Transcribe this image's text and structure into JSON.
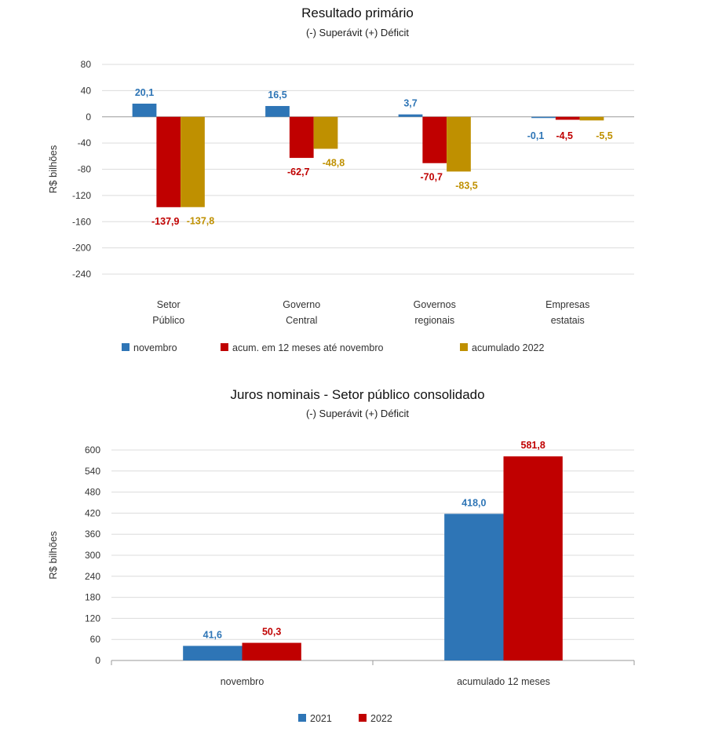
{
  "chart_data": [
    {
      "type": "bar",
      "title": "Resultado primário",
      "subtitle": "(-) Superávit  (+) Déficit",
      "ylabel": "R$ bilhões",
      "ylim": [
        -240,
        80
      ],
      "yticks": [
        80,
        40,
        0,
        -40,
        -80,
        -120,
        -160,
        -200,
        -240
      ],
      "categories": [
        [
          "Setor",
          "Público"
        ],
        [
          "Governo",
          "Central"
        ],
        [
          "Governos",
          "regionais"
        ],
        [
          "Empresas",
          "estatais"
        ]
      ],
      "series": [
        {
          "name": "novembro",
          "color": "#2E75B6",
          "values": [
            20.1,
            16.5,
            3.7,
            -0.1
          ],
          "labels": [
            "20,1",
            "16,5",
            "3,7",
            "-0,1"
          ]
        },
        {
          "name": "acum. em 12 meses até novembro",
          "color": "#C00000",
          "values": [
            -137.9,
            -62.7,
            -70.7,
            -4.5
          ],
          "labels": [
            "-137,9",
            "-62,7",
            "-70,7",
            "-4,5"
          ]
        },
        {
          "name": "acumulado 2022",
          "color": "#BF9000",
          "values": [
            -137.8,
            -48.8,
            -83.5,
            -5.5
          ],
          "labels": [
            "-137,8",
            "-48,8",
            "-83,5",
            "-5,5"
          ]
        }
      ],
      "legend_position": "bottom",
      "grid": true
    },
    {
      "type": "bar",
      "title": "Juros nominais - Setor público consolidado",
      "subtitle": "(-) Superávit  (+) Déficit",
      "ylabel": "R$ bilhões",
      "ylim": [
        0,
        600
      ],
      "yticks": [
        600,
        540,
        480,
        420,
        360,
        300,
        240,
        180,
        120,
        60,
        0
      ],
      "categories": [
        [
          "novembro"
        ],
        [
          "acumulado 12 meses"
        ]
      ],
      "series": [
        {
          "name": "2021",
          "color": "#2E75B6",
          "values": [
            41.6,
            418.0
          ],
          "labels": [
            "41,6",
            "418,0"
          ]
        },
        {
          "name": "2022",
          "color": "#C00000",
          "values": [
            50.3,
            581.8
          ],
          "labels": [
            "50,3",
            "581,8"
          ]
        }
      ],
      "legend_position": "bottom",
      "grid": true
    }
  ]
}
